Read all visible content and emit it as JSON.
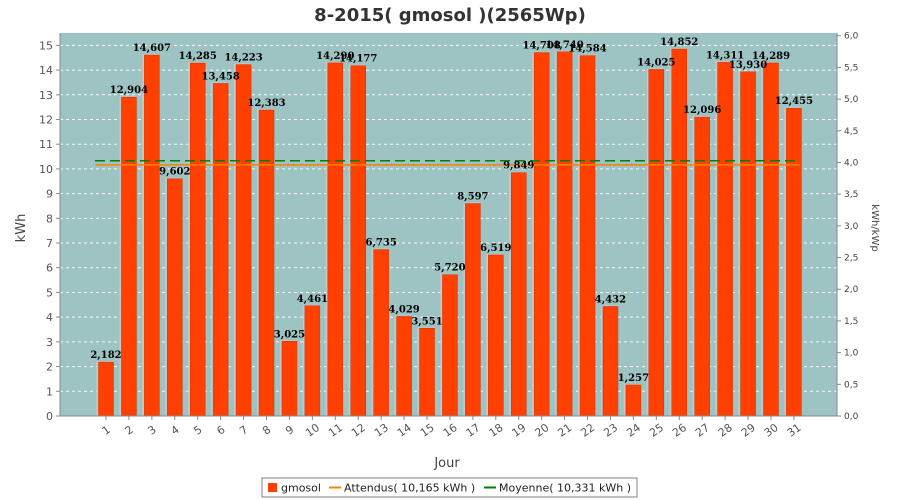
{
  "chart_data": {
    "type": "bar",
    "title": "8-2015( gmosol )(2565Wp)",
    "xlabel": "Jour",
    "ylabel": "kWh",
    "ylabel_right": "kWh/kWp",
    "ylim": [
      0,
      15.5
    ],
    "ylim_right": [
      0,
      6.0429
    ],
    "yticks": [
      0,
      1,
      2,
      3,
      4,
      5,
      6,
      7,
      8,
      9,
      10,
      11,
      12,
      13,
      14,
      15
    ],
    "yticks_right": [
      "0,0",
      "0,5",
      "1,0",
      "1,5",
      "2,0",
      "2,5",
      "3,0",
      "3,5",
      "4,0",
      "4,5",
      "5,0",
      "5,5",
      "6,0"
    ],
    "categories": [
      "1",
      "2",
      "3",
      "4",
      "5",
      "6",
      "7",
      "8",
      "9",
      "10",
      "11",
      "12",
      "13",
      "14",
      "15",
      "16",
      "17",
      "18",
      "19",
      "20",
      "21",
      "22",
      "23",
      "24",
      "25",
      "26",
      "27",
      "28",
      "29",
      "30",
      "31"
    ],
    "series": [
      {
        "name": "gmosol",
        "color": "#ff4000",
        "values": [
          2.182,
          12.904,
          14.607,
          9.602,
          14.285,
          13.458,
          14.223,
          12.383,
          3.025,
          4.461,
          14.29,
          14.177,
          6.735,
          4.029,
          3.551,
          5.72,
          8.597,
          6.519,
          9.849,
          14.708,
          14.74,
          14.584,
          4.432,
          1.257,
          14.025,
          14.852,
          12.096,
          14.311,
          13.93,
          14.289,
          12.455
        ],
        "labels": [
          "2,182",
          "12,904",
          "14,607",
          "9,602",
          "14,285",
          "13,458",
          "14,223",
          "12,383",
          "3,025",
          "4,461",
          "14,290",
          "14,177",
          "6,735",
          "4,029",
          "3,551",
          "5,720",
          "8,597",
          "6,519",
          "9,849",
          "14,708",
          "14,740",
          "14,584",
          "4,432",
          "1,257",
          "14,025",
          "14,852",
          "12,096",
          "14,311",
          "13,930",
          "14,289",
          "12,455"
        ]
      }
    ],
    "reference_lines": [
      {
        "name": "Attendus( 10,165 kWh )",
        "value": 10.165,
        "color": "#ff8000",
        "style": "solid"
      },
      {
        "name": "Moyenne( 10,331 kWh )",
        "value": 10.331,
        "color": "#008000",
        "style": "dashed"
      }
    ],
    "legend": {
      "position": "bottom",
      "entries": [
        "gmosol",
        "Attendus( 10,165 kWh )",
        "Moyenne( 10,331 kWh )"
      ]
    },
    "grid": true,
    "colors": {
      "plot_bg": "#9dc3c3",
      "bar": "#ff4000",
      "bar_edge": "#c8c8c8",
      "grid": "#ffffff"
    }
  }
}
